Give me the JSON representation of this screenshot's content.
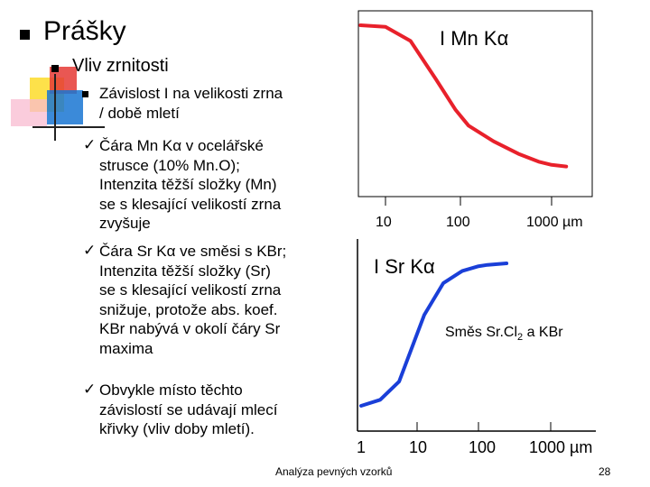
{
  "slide": {
    "title": "Prášky",
    "subtitle": "Vliv zrnitosti",
    "bullet_lines": [
      "Závislost I na velikosti zrna",
      "/ době mletí"
    ],
    "check_items": [
      {
        "check": "✓",
        "lines": [
          "Čára Mn Kα v ocelářské",
          "strusce (10% Mn.O);",
          "Intenzita těžší složky (Mn)",
          "se s klesající velikostí zrna",
          "zvyšuje"
        ]
      },
      {
        "check": "✓",
        "lines": [
          "Čára Sr Kα ve směsi s KBr;",
          "Intenzita těžší složky (Sr)",
          "se s klesající velikostí zrna",
          "snižuje, protože abs. koef.",
          "KBr nabývá v okolí čáry Sr",
          "maxima"
        ]
      },
      {
        "check": "✓",
        "lines": [
          "Obvykle místo těchto",
          "závislostí se udávají mlecí",
          "křivky (vliv doby mletí)."
        ]
      }
    ],
    "footer": "Analýza pevných vzorků",
    "page_number": "28"
  },
  "chart_data": [
    {
      "type": "line",
      "title": "I Mn Kα",
      "x_ticks": [
        "10",
        "100",
        "1000 µm"
      ],
      "xscale": "log",
      "color": "#e8212b",
      "series": [
        {
          "x": [
            5,
            10,
            20,
            40,
            70,
            100,
            200,
            400,
            700,
            1000,
            1500
          ],
          "y": [
            0.96,
            0.95,
            0.86,
            0.62,
            0.42,
            0.32,
            0.22,
            0.14,
            0.09,
            0.07,
            0.06
          ]
        }
      ]
    },
    {
      "type": "line",
      "title": "I Sr Kα",
      "annotation": "Směs Sr.Cl2 a KBr",
      "annotation_main": "Směs Sr.Cl",
      "annotation_sub": "2",
      "annotation_tail": " a KBr",
      "x_ticks": [
        "1",
        "10",
        "100",
        "1000 µm"
      ],
      "xscale": "log",
      "color": "#1a3fd8",
      "series": [
        {
          "x": [
            1,
            2,
            4,
            7,
            10,
            20,
            40,
            70,
            100,
            200
          ],
          "y": [
            0.02,
            0.06,
            0.18,
            0.45,
            0.62,
            0.83,
            0.91,
            0.94,
            0.95,
            0.96
          ]
        }
      ]
    }
  ]
}
